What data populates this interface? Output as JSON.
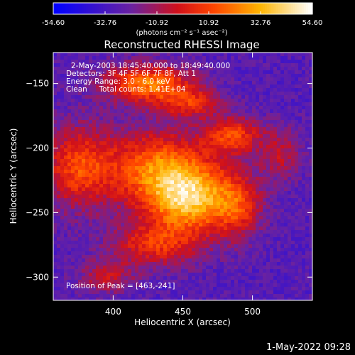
{
  "chart_data": {
    "type": "heatmap",
    "title": "Reconstructed RHESSI Image",
    "xlabel": "Heliocentric X (arcsec)",
    "ylabel": "Heliocentric Y (arcsec)",
    "xlim": [
      357,
      543
    ],
    "ylim": [
      -318,
      -126
    ],
    "x_ticks": [
      400,
      450,
      500
    ],
    "y_ticks": [
      -150,
      -200,
      -250,
      -300
    ],
    "colorbar": {
      "min": -54.6,
      "max": 54.6,
      "tick_values": [
        -54.6,
        -32.76,
        -10.92,
        10.92,
        32.76,
        54.6
      ],
      "tick_labels": [
        "-54.60",
        "-32.76",
        "-10.92",
        "10.92",
        "32.76",
        "54.60"
      ],
      "unit": "(photons cm⁻² s⁻¹ asec⁻²)",
      "colors": [
        "#0000ff",
        "#6a22a0",
        "#d0101a",
        "#ff4500",
        "#ffb400",
        "#ffffff"
      ]
    },
    "peak": [
      463,
      -241
    ],
    "blobs": [
      {
        "x": 455,
        "y": -240,
        "sx": 22,
        "sy": 18,
        "amp": 60
      },
      {
        "x": 433,
        "y": -215,
        "sx": 26,
        "sy": 20,
        "amp": 45
      },
      {
        "x": 425,
        "y": -150,
        "sx": 22,
        "sy": 10,
        "amp": 50
      },
      {
        "x": 486,
        "y": -190,
        "sx": 14,
        "sy": 10,
        "amp": 38
      },
      {
        "x": 375,
        "y": -215,
        "sx": 18,
        "sy": 22,
        "amp": 38
      },
      {
        "x": 455,
        "y": -165,
        "sx": 16,
        "sy": 8,
        "amp": 30
      },
      {
        "x": 430,
        "y": -275,
        "sx": 22,
        "sy": 12,
        "amp": 32
      },
      {
        "x": 490,
        "y": -245,
        "sx": 12,
        "sy": 18,
        "amp": 28
      },
      {
        "x": 520,
        "y": -205,
        "sx": 10,
        "sy": 14,
        "amp": 22
      },
      {
        "x": 395,
        "y": -300,
        "sx": 14,
        "sy": 9,
        "amp": 22
      }
    ],
    "background": -28
  },
  "annotations": {
    "time_range": "2-May-2003 18:45:40.000 to 18:49:40.000",
    "detectors": "Detectors: 3F 4F 5F 6F 7F 8F, Att 1",
    "energy": "Energy Range: 3.0 - 6.0 keV",
    "method": "Clean     Total counts: 1.41E+04",
    "peak": "Position of Peak = [463,-241]"
  },
  "footer": {
    "timestamp": "1-May-2022 09:28"
  }
}
